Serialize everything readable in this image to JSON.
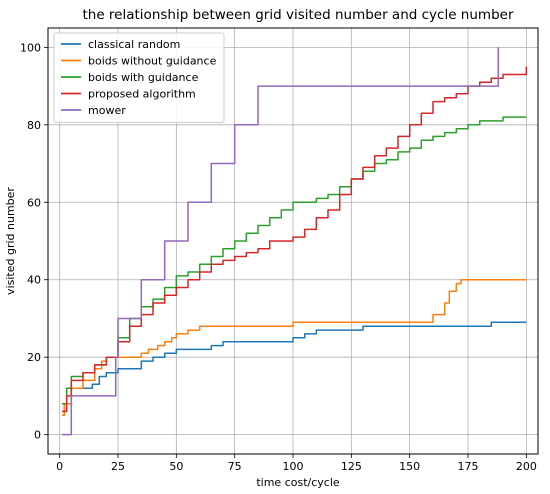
{
  "chart_data": {
    "type": "line",
    "title": "the relationship between grid visited number and cycle number",
    "xlabel": "time cost/cycle",
    "ylabel": "visited grid  number",
    "xlim": [
      -5,
      205
    ],
    "ylim": [
      -5,
      105
    ],
    "xticks": [
      0,
      25,
      50,
      75,
      100,
      125,
      150,
      175,
      200
    ],
    "yticks": [
      0,
      20,
      40,
      60,
      80,
      100
    ],
    "grid": true,
    "legend_position": "top-left",
    "series": [
      {
        "name": "classical random",
        "color": "#1f77b4",
        "x": [
          1,
          2,
          5,
          10,
          14,
          17,
          20,
          25,
          30,
          35,
          40,
          45,
          50,
          55,
          60,
          65,
          70,
          80,
          90,
          100,
          105,
          110,
          120,
          130,
          140,
          160,
          180,
          185,
          200
        ],
        "y": [
          5,
          8,
          12,
          12,
          13,
          15,
          16,
          17,
          17,
          19,
          20,
          21,
          22,
          22,
          22,
          23,
          24,
          24,
          24,
          25,
          26,
          27,
          27,
          28,
          28,
          28,
          28,
          29,
          29
        ]
      },
      {
        "name": "boids without guidance",
        "color": "#ff7f0e",
        "x": [
          1,
          2,
          5,
          10,
          15,
          18,
          20,
          25,
          30,
          35,
          38,
          40,
          42,
          45,
          48,
          50,
          55,
          60,
          100,
          155,
          160,
          165,
          167,
          170,
          172,
          200
        ],
        "y": [
          5,
          8,
          12,
          14,
          17,
          19,
          20,
          20,
          20,
          21,
          22,
          22,
          23,
          24,
          25,
          26,
          27,
          28,
          29,
          29,
          31,
          34,
          37,
          39,
          40,
          40
        ]
      },
      {
        "name": "boids with guidance",
        "color": "#2ca02c",
        "x": [
          1,
          3,
          5,
          10,
          15,
          20,
          25,
          30,
          35,
          40,
          45,
          50,
          55,
          60,
          65,
          70,
          75,
          80,
          85,
          90,
          95,
          100,
          105,
          110,
          115,
          120,
          125,
          130,
          135,
          140,
          145,
          150,
          155,
          160,
          165,
          170,
          175,
          180,
          185,
          190,
          195,
          200
        ],
        "y": [
          8,
          12,
          15,
          16,
          18,
          20,
          25,
          30,
          33,
          35,
          38,
          41,
          42,
          44,
          46,
          48,
          50,
          52,
          54,
          56,
          58,
          60,
          60,
          61,
          62,
          64,
          66,
          68,
          70,
          71,
          73,
          74,
          76,
          77,
          78,
          79,
          80,
          81,
          81,
          82,
          82,
          82
        ]
      },
      {
        "name": "proposed algorithm",
        "color": "#d62728",
        "x": [
          1,
          3,
          5,
          10,
          15,
          20,
          25,
          30,
          35,
          40,
          45,
          50,
          55,
          60,
          65,
          70,
          75,
          80,
          85,
          90,
          95,
          100,
          105,
          110,
          115,
          120,
          125,
          130,
          135,
          140,
          145,
          150,
          155,
          160,
          165,
          170,
          175,
          180,
          185,
          190,
          195,
          200
        ],
        "y": [
          6,
          10,
          14,
          16,
          18,
          20,
          24,
          28,
          31,
          34,
          36,
          38,
          40,
          42,
          44,
          45,
          46,
          47,
          48,
          50,
          50,
          51,
          53,
          56,
          58,
          62,
          66,
          69,
          72,
          74,
          77,
          80,
          83,
          86,
          87,
          88,
          90,
          91,
          92,
          93,
          93,
          95
        ]
      },
      {
        "name": "mower",
        "color": "#9467bd",
        "x": [
          1,
          2,
          4,
          5,
          15,
          24,
          25,
          34,
          35,
          44,
          45,
          54,
          55,
          64,
          65,
          74,
          75,
          84,
          85,
          186,
          188
        ],
        "y": [
          0,
          0,
          0,
          10,
          10,
          20,
          30,
          30,
          40,
          40,
          50,
          50,
          60,
          60,
          70,
          70,
          80,
          80,
          90,
          90,
          100
        ]
      }
    ]
  }
}
